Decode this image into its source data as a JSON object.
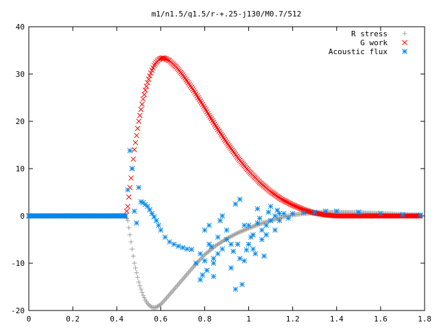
{
  "chart_data": {
    "type": "scatter",
    "title": "m1/n1.5/q1.5/r-+.25-j130/M0.7/512",
    "xlabel": "",
    "ylabel": "",
    "xlim": [
      0,
      1.8
    ],
    "ylim": [
      -20,
      40
    ],
    "x_ticks": [
      "0",
      "0.2",
      "0.4",
      "0.6",
      "0.8",
      "1",
      "1.2",
      "1.4",
      "1.6",
      "1.8"
    ],
    "y_ticks": [
      "-20",
      "-10",
      "0",
      "10",
      "20",
      "30",
      "40"
    ],
    "grid": false,
    "legend_position": "top-right",
    "series": [
      {
        "name": "R stress",
        "marker": "plus",
        "color": "#a0a0a0",
        "points": [
          [
            0,
            0
          ],
          [
            0.1,
            0
          ],
          [
            0.2,
            0
          ],
          [
            0.3,
            0
          ],
          [
            0.4,
            0
          ],
          [
            0.44,
            0
          ],
          [
            0.45,
            -1
          ],
          [
            0.46,
            -4
          ],
          [
            0.47,
            -7
          ],
          [
            0.48,
            -10
          ],
          [
            0.49,
            -12
          ],
          [
            0.5,
            -14
          ],
          [
            0.51,
            -15.5
          ],
          [
            0.52,
            -16.8
          ],
          [
            0.53,
            -17.8
          ],
          [
            0.54,
            -18.5
          ],
          [
            0.55,
            -19
          ],
          [
            0.56,
            -19.3
          ],
          [
            0.57,
            -19.4
          ],
          [
            0.58,
            -19.3
          ],
          [
            0.6,
            -18.7
          ],
          [
            0.62,
            -17.7
          ],
          [
            0.65,
            -16.1
          ],
          [
            0.7,
            -13.4
          ],
          [
            0.75,
            -10.7
          ],
          [
            0.8,
            -8.2
          ],
          [
            0.85,
            -6.3
          ],
          [
            0.9,
            -4.8
          ],
          [
            0.95,
            -3.6
          ],
          [
            1.0,
            -2.6
          ],
          [
            1.05,
            -1.7
          ],
          [
            1.1,
            -1
          ],
          [
            1.15,
            -0.3
          ],
          [
            1.2,
            0.2
          ],
          [
            1.25,
            0.5
          ],
          [
            1.3,
            0.7
          ],
          [
            1.35,
            0.8
          ],
          [
            1.4,
            0.8
          ],
          [
            1.5,
            0.7
          ],
          [
            1.6,
            0.5
          ],
          [
            1.7,
            0.3
          ],
          [
            1.78,
            0.2
          ]
        ]
      },
      {
        "name": "G work",
        "marker": "cross",
        "color": "#ff0000",
        "points": [
          [
            0,
            0
          ],
          [
            0.2,
            0
          ],
          [
            0.4,
            0
          ],
          [
            0.44,
            0
          ],
          [
            0.45,
            2
          ],
          [
            0.46,
            6
          ],
          [
            0.47,
            10
          ],
          [
            0.48,
            14
          ],
          [
            0.49,
            17
          ],
          [
            0.5,
            20
          ],
          [
            0.51,
            22.5
          ],
          [
            0.52,
            24.7
          ],
          [
            0.53,
            26.6
          ],
          [
            0.54,
            28.2
          ],
          [
            0.55,
            29.6
          ],
          [
            0.56,
            30.8
          ],
          [
            0.57,
            31.8
          ],
          [
            0.58,
            32.5
          ],
          [
            0.59,
            33
          ],
          [
            0.6,
            33.3
          ],
          [
            0.61,
            33.4
          ],
          [
            0.62,
            33.3
          ],
          [
            0.64,
            32.8
          ],
          [
            0.67,
            31.5
          ],
          [
            0.7,
            29.8
          ],
          [
            0.75,
            26.5
          ],
          [
            0.8,
            22.8
          ],
          [
            0.85,
            19
          ],
          [
            0.9,
            15.5
          ],
          [
            0.95,
            12.3
          ],
          [
            1.0,
            9.5
          ],
          [
            1.05,
            7.1
          ],
          [
            1.1,
            5.1
          ],
          [
            1.15,
            3.5
          ],
          [
            1.2,
            2.3
          ],
          [
            1.25,
            1.3
          ],
          [
            1.3,
            0.6
          ],
          [
            1.35,
            0.2
          ],
          [
            1.4,
            0
          ],
          [
            1.5,
            0
          ],
          [
            1.6,
            0
          ],
          [
            1.7,
            0
          ],
          [
            1.78,
            0
          ]
        ]
      },
      {
        "name": "Acoustic flux",
        "marker": "star",
        "color": "#0088ee",
        "points": [
          [
            0,
            0
          ],
          [
            0.1,
            0
          ],
          [
            0.2,
            0
          ],
          [
            0.3,
            0
          ],
          [
            0.4,
            0
          ],
          [
            0.44,
            0
          ],
          [
            0.45,
            5.5
          ],
          [
            0.46,
            13.8
          ],
          [
            0.47,
            10
          ],
          [
            0.48,
            1
          ],
          [
            0.49,
            -1.5
          ],
          [
            0.5,
            6
          ],
          [
            0.51,
            3
          ],
          [
            0.52,
            2.8
          ],
          [
            0.53,
            2.4
          ],
          [
            0.54,
            2
          ],
          [
            0.55,
            1.3
          ],
          [
            0.56,
            0.5
          ],
          [
            0.57,
            -0.2
          ],
          [
            0.58,
            -1
          ],
          [
            0.59,
            -2
          ],
          [
            0.6,
            -3
          ],
          [
            0.62,
            -4.5
          ],
          [
            0.64,
            -5.5
          ],
          [
            0.66,
            -6
          ],
          [
            0.68,
            -6.4
          ],
          [
            0.7,
            -6.7
          ],
          [
            0.72,
            -7
          ],
          [
            0.74,
            -7.1
          ],
          [
            0.76,
            -10
          ],
          [
            0.78,
            -8
          ],
          [
            0.8,
            -9.5
          ],
          [
            0.82,
            -6
          ],
          [
            0.84,
            -9
          ],
          [
            0.86,
            -4.5
          ],
          [
            0.88,
            -7
          ],
          [
            0.9,
            -3
          ],
          [
            0.92,
            -11
          ],
          [
            0.94,
            -15.5
          ],
          [
            0.95,
            -6
          ],
          [
            0.96,
            -9
          ],
          [
            0.98,
            -2
          ],
          [
            1.0,
            -6
          ],
          [
            1.02,
            -4
          ],
          [
            1.04,
            -1.5
          ],
          [
            1.06,
            -3
          ],
          [
            1.08,
            -4
          ],
          [
            1.1,
            -1
          ],
          [
            1.12,
            0
          ],
          [
            1.14,
            -1
          ],
          [
            1.16,
            0.5
          ],
          [
            1.18,
            -0.5
          ],
          [
            1.2,
            0.5
          ],
          [
            1.25,
            0.7
          ],
          [
            1.3,
            0.8
          ],
          [
            1.35,
            1
          ],
          [
            1.4,
            1
          ],
          [
            1.5,
            0.8
          ],
          [
            1.6,
            0.5
          ],
          [
            1.7,
            0.3
          ],
          [
            1.78,
            0.2
          ],
          [
            0.78,
            -13.5
          ],
          [
            0.8,
            -3
          ],
          [
            0.82,
            -2
          ],
          [
            0.84,
            -10
          ],
          [
            0.86,
            -8
          ],
          [
            0.88,
            0
          ],
          [
            0.9,
            -5
          ],
          [
            0.92,
            -6
          ],
          [
            0.94,
            2.5
          ],
          [
            0.96,
            3.5
          ],
          [
            0.98,
            -9.5
          ],
          [
            1.0,
            -2
          ],
          [
            1.02,
            -7
          ],
          [
            1.04,
            1.5
          ],
          [
            1.06,
            -5
          ],
          [
            1.08,
            -2
          ],
          [
            1.1,
            2
          ],
          [
            1.12,
            -3
          ],
          [
            1.14,
            0.5
          ],
          [
            0.97,
            -14.5
          ],
          [
            0.84,
            -12.8
          ],
          [
            0.79,
            -12.5
          ],
          [
            0.81,
            -11.5
          ],
          [
            0.83,
            -6.5
          ],
          [
            0.87,
            -1
          ],
          [
            0.93,
            -7.5
          ],
          [
            1.03,
            -8
          ],
          [
            1.05,
            -0.5
          ],
          [
            1.09,
            0.8
          ],
          [
            1.13,
            1.2
          ],
          [
            1.07,
            -8.5
          ],
          [
            1.01,
            -4.5
          ],
          [
            0.99,
            -7.2
          ]
        ]
      }
    ]
  }
}
